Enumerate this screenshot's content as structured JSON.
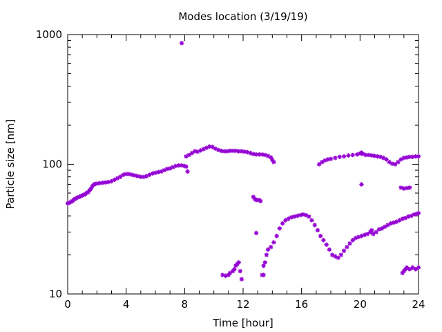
{
  "chart_data": {
    "type": "scatter",
    "title": "Modes location (3/19/19)",
    "xlabel": "Time [hour]",
    "ylabel": "Particle size [nm]",
    "xlim": [
      0,
      24
    ],
    "ylim": [
      10,
      1000
    ],
    "yscale": "log",
    "grid": false,
    "legend": "none",
    "x_ticks": [
      0,
      4,
      8,
      12,
      16,
      20,
      24
    ],
    "y_ticks": [
      10,
      100,
      1000
    ],
    "marker_color": "#9400d3",
    "series": [
      {
        "points": [
          [
            0.0,
            50
          ],
          [
            0.1,
            50.5
          ],
          [
            0.2,
            51
          ],
          [
            0.3,
            52
          ],
          [
            0.4,
            53
          ],
          [
            0.5,
            54
          ],
          [
            0.6,
            55
          ],
          [
            0.7,
            55.5
          ],
          [
            0.8,
            56
          ],
          [
            0.9,
            57
          ],
          [
            1.0,
            57.5
          ],
          [
            1.1,
            58
          ],
          [
            1.2,
            59
          ],
          [
            1.3,
            60
          ],
          [
            1.4,
            61
          ],
          [
            1.5,
            63
          ],
          [
            1.6,
            65
          ],
          [
            1.7,
            68
          ],
          [
            1.8,
            70
          ],
          [
            1.9,
            70.5
          ],
          [
            2.0,
            71
          ],
          [
            2.2,
            71.5
          ],
          [
            2.4,
            72
          ],
          [
            2.6,
            72.5
          ],
          [
            2.8,
            73
          ],
          [
            3.0,
            74
          ],
          [
            3.2,
            76
          ],
          [
            3.4,
            78
          ],
          [
            3.6,
            80
          ],
          [
            3.8,
            83
          ],
          [
            4.0,
            84
          ],
          [
            4.2,
            84
          ],
          [
            4.4,
            83
          ],
          [
            4.6,
            82
          ],
          [
            4.8,
            81
          ],
          [
            5.0,
            80
          ],
          [
            5.2,
            80
          ],
          [
            5.4,
            81
          ],
          [
            5.6,
            83
          ],
          [
            5.8,
            85
          ],
          [
            6.0,
            86
          ],
          [
            6.2,
            87
          ],
          [
            6.4,
            88
          ],
          [
            6.6,
            90
          ],
          [
            6.8,
            92
          ],
          [
            7.0,
            93
          ],
          [
            7.2,
            95
          ],
          [
            7.4,
            97
          ],
          [
            7.6,
            98
          ],
          [
            7.8,
            98
          ],
          [
            8.0,
            97
          ],
          [
            8.1,
            96
          ],
          [
            8.1,
            115
          ],
          [
            8.3,
            118
          ],
          [
            8.5,
            122
          ],
          [
            8.7,
            126
          ],
          [
            8.9,
            125
          ],
          [
            9.1,
            128
          ],
          [
            9.3,
            131
          ],
          [
            9.5,
            134
          ],
          [
            9.7,
            137
          ],
          [
            9.9,
            136
          ],
          [
            10.1,
            132
          ],
          [
            10.3,
            129
          ],
          [
            10.5,
            127
          ],
          [
            10.7,
            126
          ],
          [
            10.9,
            126
          ],
          [
            11.1,
            127
          ],
          [
            11.3,
            127
          ],
          [
            11.5,
            127
          ],
          [
            11.7,
            126
          ],
          [
            11.9,
            126
          ],
          [
            12.1,
            125
          ],
          [
            12.3,
            124
          ],
          [
            12.5,
            122
          ],
          [
            12.7,
            120
          ],
          [
            12.9,
            119
          ],
          [
            13.1,
            119
          ],
          [
            13.3,
            119
          ],
          [
            13.5,
            118
          ],
          [
            13.7,
            116
          ],
          [
            13.9,
            113
          ],
          [
            14.0,
            108
          ],
          [
            14.1,
            104
          ],
          [
            17.2,
            100
          ],
          [
            17.4,
            104
          ],
          [
            17.6,
            107
          ],
          [
            17.8,
            109
          ],
          [
            18.0,
            110
          ],
          [
            18.3,
            112
          ],
          [
            18.6,
            114
          ],
          [
            18.9,
            115
          ],
          [
            19.2,
            117
          ],
          [
            19.5,
            118
          ],
          [
            19.8,
            119
          ],
          [
            20.0,
            121
          ],
          [
            20.1,
            123
          ],
          [
            20.2,
            120
          ],
          [
            20.4,
            118
          ],
          [
            20.6,
            118
          ],
          [
            20.8,
            117
          ],
          [
            21.0,
            116
          ],
          [
            21.2,
            115
          ],
          [
            21.4,
            114
          ],
          [
            21.6,
            112
          ],
          [
            21.8,
            109
          ],
          [
            22.0,
            104
          ],
          [
            22.2,
            101
          ],
          [
            22.4,
            100
          ],
          [
            22.6,
            104
          ],
          [
            22.8,
            109
          ],
          [
            23.0,
            112
          ],
          [
            23.2,
            113
          ],
          [
            23.4,
            114
          ],
          [
            23.6,
            114
          ],
          [
            23.8,
            115
          ],
          [
            24.0,
            115
          ],
          [
            7.8,
            860
          ],
          [
            8.2,
            88
          ],
          [
            12.7,
            56
          ],
          [
            12.8,
            54
          ],
          [
            12.9,
            53
          ],
          [
            13.0,
            53
          ],
          [
            13.1,
            53
          ],
          [
            13.2,
            52
          ],
          [
            12.9,
            29.5
          ],
          [
            10.6,
            14
          ],
          [
            10.8,
            13.8
          ],
          [
            11.0,
            14
          ],
          [
            11.1,
            14.5
          ],
          [
            11.3,
            15
          ],
          [
            11.4,
            15.5
          ],
          [
            11.5,
            16.5
          ],
          [
            11.6,
            17
          ],
          [
            11.7,
            17.5
          ],
          [
            11.8,
            15
          ],
          [
            11.9,
            13
          ],
          [
            13.3,
            14
          ],
          [
            13.4,
            14
          ],
          [
            13.4,
            16.5
          ],
          [
            13.5,
            17.5
          ],
          [
            13.6,
            20
          ],
          [
            13.7,
            22
          ],
          [
            13.9,
            23
          ],
          [
            14.1,
            25
          ],
          [
            14.3,
            28
          ],
          [
            14.5,
            32
          ],
          [
            14.7,
            35
          ],
          [
            14.9,
            37
          ],
          [
            15.1,
            38
          ],
          [
            15.3,
            39
          ],
          [
            15.5,
            39.5
          ],
          [
            15.7,
            40
          ],
          [
            15.9,
            40.5
          ],
          [
            16.1,
            41
          ],
          [
            16.3,
            40.5
          ],
          [
            16.5,
            39.5
          ],
          [
            16.7,
            37
          ],
          [
            16.9,
            34
          ],
          [
            17.1,
            31
          ],
          [
            17.3,
            28
          ],
          [
            17.5,
            26
          ],
          [
            17.7,
            24
          ],
          [
            17.9,
            22
          ],
          [
            18.1,
            20
          ],
          [
            18.3,
            19.5
          ],
          [
            18.5,
            19
          ],
          [
            18.7,
            20
          ],
          [
            18.9,
            21.5
          ],
          [
            19.1,
            23
          ],
          [
            19.3,
            24.5
          ],
          [
            19.5,
            26
          ],
          [
            19.7,
            27
          ],
          [
            19.9,
            27.5
          ],
          [
            20.1,
            28
          ],
          [
            20.3,
            28.5
          ],
          [
            20.5,
            29
          ],
          [
            20.7,
            30
          ],
          [
            20.8,
            31
          ],
          [
            20.9,
            29
          ],
          [
            21.1,
            30
          ],
          [
            21.3,
            31.5
          ],
          [
            21.5,
            32
          ],
          [
            21.7,
            33
          ],
          [
            21.9,
            34
          ],
          [
            22.1,
            35
          ],
          [
            22.3,
            35.5
          ],
          [
            22.5,
            36
          ],
          [
            22.7,
            37
          ],
          [
            22.9,
            38
          ],
          [
            23.1,
            38.5
          ],
          [
            23.3,
            39.5
          ],
          [
            23.5,
            40
          ],
          [
            23.7,
            41
          ],
          [
            23.9,
            41.5
          ],
          [
            24.0,
            42
          ],
          [
            20.1,
            70
          ],
          [
            22.8,
            66
          ],
          [
            23.0,
            65
          ],
          [
            23.2,
            65.5
          ],
          [
            23.4,
            66
          ],
          [
            22.9,
            14.5
          ],
          [
            23.0,
            15
          ],
          [
            23.1,
            15.5
          ],
          [
            23.2,
            16
          ],
          [
            23.4,
            15.5
          ],
          [
            23.6,
            16
          ],
          [
            23.8,
            15.5
          ],
          [
            24.0,
            16
          ]
        ]
      }
    ]
  }
}
